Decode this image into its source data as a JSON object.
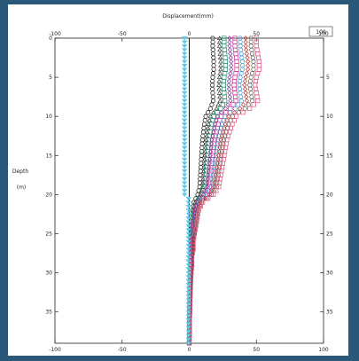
{
  "window": {
    "background": "#2b5779",
    "frame": "#ffffff"
  },
  "chart_data": {
    "type": "scatter",
    "title": "",
    "xlabel": "Displacement(mm)",
    "ylabel": "Depth",
    "ylabel_unit": "(m)",
    "corner_box": "100",
    "x_axis_position": "top and bottom",
    "xlim": [
      -100,
      100
    ],
    "ylim": [
      0,
      39
    ],
    "y_inverted": true,
    "xticks_top": [
      "-100",
      "-50",
      "0",
      "50",
      "100"
    ],
    "xticks_bottom": [
      "-100",
      "-50",
      "0",
      "50",
      "100"
    ],
    "yticks_left": [
      "0",
      "5",
      "10",
      "15",
      "20",
      "25",
      "30",
      "35"
    ],
    "yticks_right": [
      "5",
      "10",
      "15",
      "20",
      "25",
      "30",
      "35"
    ],
    "grid": false,
    "reference_line_x": 0,
    "series": [
      {
        "color": "#111111",
        "marker": "circle",
        "scale": 0.35
      },
      {
        "color": "#3a3a3a",
        "marker": "triangle",
        "scale": 0.45
      },
      {
        "color": "#1f8a6a",
        "marker": "square",
        "scale": 0.52
      },
      {
        "color": "#7a3b9a",
        "marker": "diamond",
        "scale": 0.6
      },
      {
        "color": "#d12b8f",
        "marker": "square",
        "scale": 0.68
      },
      {
        "color": "#2b8fd1",
        "marker": "circle",
        "scale": 0.76
      },
      {
        "color": "#c0392b",
        "marker": "diamond",
        "scale": 0.84
      },
      {
        "color": "#555555",
        "marker": "circle",
        "scale": 0.92
      },
      {
        "color": "#e0507a",
        "marker": "square",
        "scale": 1.0
      },
      {
        "color": "#5ec8e6",
        "marker": "triangle-down",
        "scale": -0.05
      }
    ],
    "base_profile": [
      [
        0,
        50
      ],
      [
        1,
        50
      ],
      [
        2,
        51
      ],
      [
        3,
        52
      ],
      [
        4,
        52
      ],
      [
        5,
        50
      ],
      [
        6,
        49
      ],
      [
        7,
        50
      ],
      [
        8,
        51
      ],
      [
        9,
        45
      ],
      [
        10,
        35
      ],
      [
        11,
        32
      ],
      [
        12,
        30
      ],
      [
        13,
        28
      ],
      [
        14,
        27
      ],
      [
        15,
        26
      ],
      [
        16,
        25
      ],
      [
        17,
        24
      ],
      [
        18,
        23
      ],
      [
        19,
        22
      ],
      [
        20,
        18
      ],
      [
        21,
        10
      ],
      [
        22,
        7
      ],
      [
        23,
        6
      ],
      [
        24,
        5
      ],
      [
        25,
        4
      ],
      [
        26,
        3
      ],
      [
        27,
        3
      ],
      [
        28,
        2
      ],
      [
        29,
        2
      ],
      [
        30,
        1.5
      ],
      [
        31,
        1.2
      ],
      [
        32,
        1
      ],
      [
        33,
        0.8
      ],
      [
        34,
        0.6
      ],
      [
        35,
        0.5
      ],
      [
        36,
        0.3
      ],
      [
        37,
        0.2
      ],
      [
        38,
        0.1
      ],
      [
        39,
        0
      ]
    ]
  }
}
